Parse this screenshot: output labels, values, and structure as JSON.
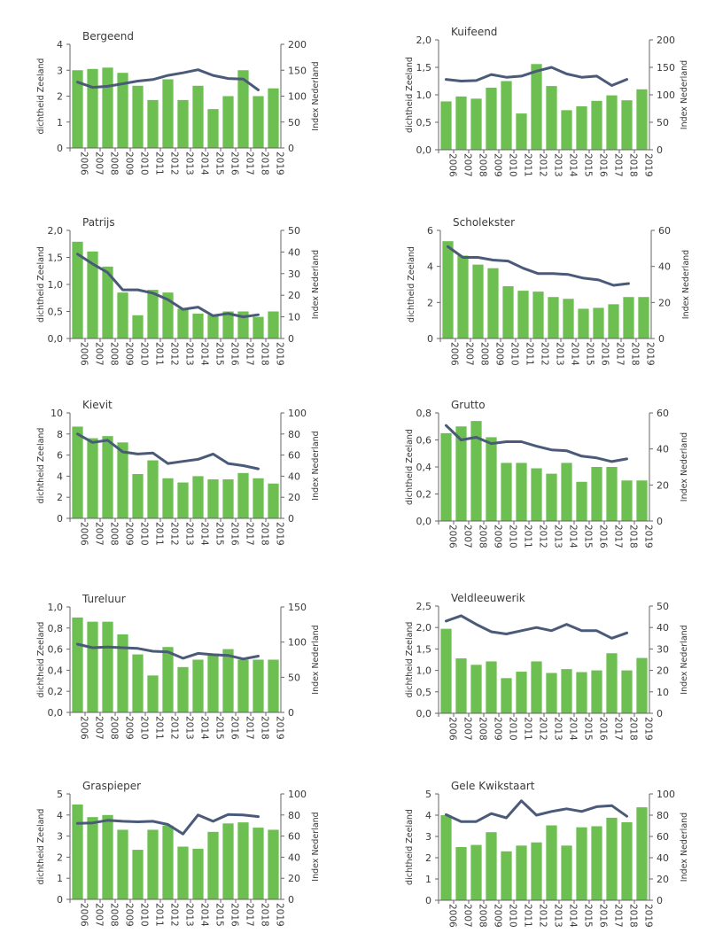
{
  "colors": {
    "bar": "#6cbf50",
    "line": "#4a5a78",
    "axis": "#666666",
    "text": "#3a3a3a"
  },
  "chart_data": [
    {
      "type": "bar+line",
      "title": "Bergeend",
      "categories": [
        "2006",
        "2007",
        "2008",
        "2009",
        "2010",
        "2011",
        "2012",
        "2013",
        "2014",
        "2015",
        "2016",
        "2017",
        "2018",
        "2019"
      ],
      "ylabel": "dichtheid Zeeland",
      "y2label": "Index Nederland",
      "ylim": [
        0,
        4
      ],
      "yticks": [
        "0",
        "1",
        "2",
        "3",
        "4"
      ],
      "y2lim": [
        0,
        200
      ],
      "y2ticks": [
        "0",
        "50",
        "100",
        "150",
        "200"
      ],
      "bars": [
        3.0,
        3.05,
        3.1,
        2.9,
        2.4,
        1.85,
        2.65,
        1.85,
        2.4,
        1.5,
        2.0,
        3.0,
        2.0,
        2.3
      ],
      "line": [
        127,
        117,
        119,
        124,
        129,
        132,
        140,
        145,
        151,
        140,
        134,
        133,
        112
      ]
    },
    {
      "type": "bar+line",
      "title": "Kuifeend",
      "categories": [
        "2006",
        "2007",
        "2008",
        "2009",
        "2010",
        "2011",
        "2012",
        "2013",
        "2014",
        "2015",
        "2016",
        "2017",
        "2018",
        "2019"
      ],
      "ylabel": "dichtheid Zeeland",
      "y2label": "Index Nederland",
      "ylim": [
        0,
        2
      ],
      "yticks": [
        "0,0",
        "0,5",
        "1,0",
        "1,5",
        "2,0"
      ],
      "y2lim": [
        0,
        200
      ],
      "y2ticks": [
        "0",
        "50",
        "100",
        "150",
        "200"
      ],
      "bars": [
        0.88,
        0.97,
        0.93,
        1.13,
        1.25,
        0.66,
        1.56,
        1.16,
        0.72,
        0.79,
        0.89,
        0.99,
        0.9,
        1.1
      ],
      "line": [
        128,
        125,
        126,
        137,
        132,
        134,
        143,
        150,
        138,
        132,
        134,
        117,
        128
      ]
    },
    {
      "type": "bar+line",
      "title": "Patrijs",
      "categories": [
        "2006",
        "2007",
        "2008",
        "2009",
        "2010",
        "2011",
        "2012",
        "2013",
        "2014",
        "2015",
        "2016",
        "2017",
        "2018",
        "2019"
      ],
      "ylabel": "dichtheid Zeeland",
      "y2label": "Index Nederland",
      "ylim": [
        0,
        2
      ],
      "yticks": [
        "0,0",
        "0,5",
        "1,0",
        "1,5",
        "2,0"
      ],
      "y2lim": [
        0,
        50
      ],
      "y2ticks": [
        "0",
        "10",
        "20",
        "30",
        "40",
        "50"
      ],
      "bars": [
        1.79,
        1.61,
        1.33,
        0.85,
        0.43,
        0.9,
        0.85,
        0.55,
        0.46,
        0.44,
        0.5,
        0.5,
        0.4,
        0.5
      ],
      "line": [
        39,
        34.5,
        30.5,
        22.5,
        22.5,
        21,
        18,
        13.5,
        14.5,
        10.5,
        11.5,
        10,
        11
      ]
    },
    {
      "type": "bar+line",
      "title": "Scholekster",
      "categories": [
        "2006",
        "2007",
        "2008",
        "2009",
        "2010",
        "2011",
        "2012",
        "2013",
        "2014",
        "2015",
        "2016",
        "2017",
        "2018",
        "2019"
      ],
      "ylabel": "dichtheid Zeeland",
      "y2label": "Index Nederland",
      "ylim": [
        0,
        6
      ],
      "yticks": [
        "0",
        "2",
        "4",
        "6"
      ],
      "y2lim": [
        0,
        60
      ],
      "y2ticks": [
        "0",
        "20",
        "40",
        "60"
      ],
      "bars": [
        5.4,
        4.6,
        4.1,
        3.9,
        2.9,
        2.65,
        2.6,
        2.3,
        2.2,
        1.65,
        1.7,
        1.9,
        2.3,
        2.3
      ],
      "line": [
        51,
        45,
        45,
        43.5,
        43,
        39,
        36,
        36,
        35.5,
        33.5,
        32.5,
        29.5,
        30.5
      ]
    },
    {
      "type": "bar+line",
      "title": "Kievit",
      "categories": [
        "2006",
        "2007",
        "2008",
        "2009",
        "2010",
        "2011",
        "2012",
        "2013",
        "2014",
        "2015",
        "2016",
        "2017",
        "2018",
        "2019"
      ],
      "ylabel": "dichtheid Zeeland",
      "y2label": "Index Nederland",
      "ylim": [
        0,
        10
      ],
      "yticks": [
        "0",
        "2",
        "4",
        "6",
        "8",
        "10"
      ],
      "y2lim": [
        0,
        100
      ],
      "y2ticks": [
        "0",
        "20",
        "40",
        "60",
        "80",
        "100"
      ],
      "bars": [
        8.7,
        7.6,
        7.8,
        7.2,
        4.2,
        5.5,
        3.8,
        3.4,
        4.0,
        3.7,
        3.7,
        4.3,
        3.8,
        3.3
      ],
      "line": [
        80,
        72,
        74,
        63,
        61,
        62,
        52,
        54,
        56,
        61,
        52,
        50,
        47
      ]
    },
    {
      "type": "bar+line",
      "title": "Grutto",
      "categories": [
        "2006",
        "2007",
        "2008",
        "2009",
        "2010",
        "2011",
        "2012",
        "2013",
        "2014",
        "2015",
        "2016",
        "2017",
        "2018",
        "2019"
      ],
      "ylabel": "dichtheid Zeeland",
      "y2label": "Index Nederland",
      "ylim": [
        0,
        0.8
      ],
      "yticks": [
        "0,0",
        "0,2",
        "0,4",
        "0,6",
        "0,8"
      ],
      "y2lim": [
        0,
        60
      ],
      "y2ticks": [
        "0",
        "20",
        "40",
        "60"
      ],
      "bars": [
        0.65,
        0.7,
        0.74,
        0.62,
        0.43,
        0.43,
        0.39,
        0.35,
        0.43,
        0.29,
        0.4,
        0.4,
        0.3,
        0.3
      ],
      "line": [
        53,
        45,
        46.5,
        43,
        44,
        44,
        41.5,
        39.5,
        39,
        36,
        35,
        33,
        34.5
      ]
    },
    {
      "type": "bar+line",
      "title": "Tureluur",
      "categories": [
        "2006",
        "2007",
        "2008",
        "2009",
        "2010",
        "2011",
        "2012",
        "2013",
        "2014",
        "2015",
        "2016",
        "2017",
        "2018",
        "2019"
      ],
      "ylabel": "dichtheid Zeeland",
      "y2label": "Index Nederland",
      "ylim": [
        0,
        1
      ],
      "yticks": [
        "0,0",
        "0,2",
        "0,4",
        "0,6",
        "0,8",
        "1,0"
      ],
      "y2lim": [
        0,
        150
      ],
      "y2ticks": [
        "0",
        "50",
        "100",
        "150"
      ],
      "bars": [
        0.9,
        0.86,
        0.86,
        0.74,
        0.55,
        0.35,
        0.62,
        0.43,
        0.5,
        0.55,
        0.6,
        0.5,
        0.5,
        0.5
      ],
      "line": [
        97,
        92,
        93,
        92,
        91,
        87,
        86,
        77,
        84,
        82,
        81,
        76,
        80
      ]
    },
    {
      "type": "bar+line",
      "title": "Veldleeuwerik",
      "categories": [
        "2006",
        "2007",
        "2008",
        "2009",
        "2010",
        "2011",
        "2012",
        "2013",
        "2014",
        "2015",
        "2016",
        "2017",
        "2018",
        "2019"
      ],
      "ylabel": "dichtheid Zeeland",
      "y2label": "Index Nederland",
      "ylim": [
        0,
        2.5
      ],
      "yticks": [
        "0,0",
        "0,5",
        "1,0",
        "1,5",
        "2,0",
        "2,5"
      ],
      "y2lim": [
        0,
        50
      ],
      "y2ticks": [
        "0",
        "10",
        "20",
        "30",
        "40",
        "50"
      ],
      "bars": [
        1.97,
        1.28,
        1.13,
        1.21,
        0.82,
        0.97,
        1.21,
        0.94,
        1.03,
        0.96,
        1.0,
        1.4,
        1.0,
        1.29
      ],
      "line": [
        43,
        45.5,
        41.5,
        38,
        37,
        38.5,
        40,
        38.5,
        41.5,
        38.5,
        38.5,
        35,
        37.5
      ]
    },
    {
      "type": "bar+line",
      "title": "Graspieper",
      "categories": [
        "2006",
        "2007",
        "2008",
        "2009",
        "2010",
        "2011",
        "2012",
        "2013",
        "2014",
        "2015",
        "2016",
        "2017",
        "2018",
        "2019"
      ],
      "ylabel": "dichtheid Zeeland",
      "y2label": "Index Nederland",
      "ylim": [
        0,
        5
      ],
      "yticks": [
        "0",
        "1",
        "2",
        "3",
        "4",
        "5"
      ],
      "y2lim": [
        0,
        100
      ],
      "y2ticks": [
        "0",
        "20",
        "40",
        "60",
        "80",
        "100"
      ],
      "bars": [
        4.5,
        3.9,
        4.0,
        3.3,
        2.35,
        3.3,
        3.5,
        2.5,
        2.4,
        3.2,
        3.6,
        3.65,
        3.4,
        3.3
      ],
      "line": [
        72,
        72.5,
        75,
        74,
        73.5,
        74,
        71,
        62,
        80,
        74,
        80.5,
        80,
        78.5
      ]
    },
    {
      "type": "bar+line",
      "title": "Gele Kwikstaart",
      "categories": [
        "2006",
        "2007",
        "2008",
        "2009",
        "2010",
        "2011",
        "2012",
        "2013",
        "2014",
        "2015",
        "2016",
        "2017",
        "2018",
        "2019"
      ],
      "ylabel": "dichtheid Zeeland",
      "y2label": "Index Nederland",
      "ylim": [
        0,
        5
      ],
      "yticks": [
        "0",
        "1",
        "2",
        "3",
        "4",
        "5"
      ],
      "y2lim": [
        0,
        100
      ],
      "y2ticks": [
        "0",
        "20",
        "40",
        "60",
        "80",
        "100"
      ],
      "bars": [
        4.0,
        2.5,
        2.6,
        3.2,
        2.3,
        2.57,
        2.72,
        3.52,
        2.57,
        3.43,
        3.48,
        3.88,
        3.67,
        4.37
      ],
      "line": [
        80.5,
        74,
        74,
        81.5,
        77.5,
        93.5,
        80,
        83.5,
        86,
        83.5,
        88,
        89,
        79
      ]
    }
  ]
}
